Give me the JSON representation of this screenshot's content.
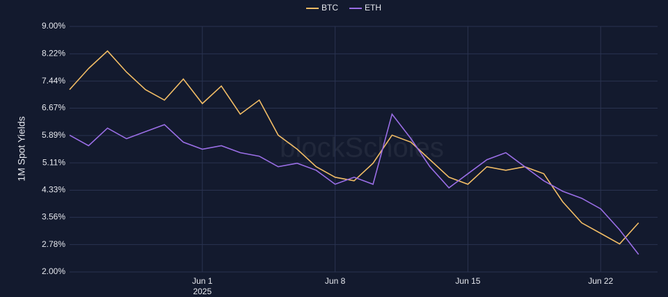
{
  "chart_data": {
    "type": "line",
    "y_label": "1M Spot Yields",
    "watermark": "blockScholes",
    "x": [
      "2025-05-25",
      "2025-05-26",
      "2025-05-27",
      "2025-05-28",
      "2025-05-29",
      "2025-05-30",
      "2025-05-31",
      "2025-06-01",
      "2025-06-02",
      "2025-06-03",
      "2025-06-04",
      "2025-06-05",
      "2025-06-06",
      "2025-06-07",
      "2025-06-08",
      "2025-06-09",
      "2025-06-10",
      "2025-06-11",
      "2025-06-12",
      "2025-06-13",
      "2025-06-14",
      "2025-06-15",
      "2025-06-16",
      "2025-06-17",
      "2025-06-18",
      "2025-06-19",
      "2025-06-20",
      "2025-06-21",
      "2025-06-22",
      "2025-06-23",
      "2025-06-24"
    ],
    "series": [
      {
        "name": "BTC",
        "color": "#f2bd66",
        "values": [
          7.2,
          7.8,
          8.3,
          7.7,
          7.2,
          6.9,
          7.5,
          6.8,
          7.3,
          6.5,
          6.9,
          5.9,
          5.5,
          5.0,
          4.7,
          4.6,
          5.1,
          5.9,
          5.7,
          5.2,
          4.7,
          4.5,
          5.0,
          4.9,
          5.0,
          4.8,
          4.0,
          3.4,
          3.1,
          2.8,
          3.4
        ]
      },
      {
        "name": "ETH",
        "color": "#9a6ee6",
        "values": [
          5.9,
          5.6,
          6.1,
          5.8,
          6.0,
          6.2,
          5.7,
          5.5,
          5.6,
          5.4,
          5.3,
          5.0,
          5.1,
          4.9,
          4.5,
          4.7,
          4.5,
          6.5,
          5.8,
          5.0,
          4.4,
          4.8,
          5.2,
          5.4,
          5.0,
          4.6,
          4.3,
          4.1,
          3.8,
          3.2,
          2.5
        ]
      }
    ],
    "xlim": [
      "2025-05-25",
      "2025-06-25"
    ],
    "xticks": [
      {
        "value": "2025-06-01",
        "label": "Jun 1"
      },
      {
        "value": "2025-06-08",
        "label": "Jun 8"
      },
      {
        "value": "2025-06-15",
        "label": "Jun 15"
      },
      {
        "value": "2025-06-22",
        "label": "Jun 22"
      }
    ],
    "x_year": "2025",
    "ylim": [
      2,
      9
    ],
    "yticks": [
      {
        "value": 2,
        "label": "2.00%"
      },
      {
        "value": 2.78,
        "label": "2.78%"
      },
      {
        "value": 3.56,
        "label": "3.56%"
      },
      {
        "value": 4.33,
        "label": "4.33%"
      },
      {
        "value": 5.11,
        "label": "5.11%"
      },
      {
        "value": 5.89,
        "label": "5.89%"
      },
      {
        "value": 6.67,
        "label": "6.67%"
      },
      {
        "value": 7.44,
        "label": "7.44%"
      },
      {
        "value": 8.22,
        "label": "8.22%"
      },
      {
        "value": 9,
        "label": "9.00%"
      }
    ],
    "grid": true,
    "legend": "top"
  }
}
